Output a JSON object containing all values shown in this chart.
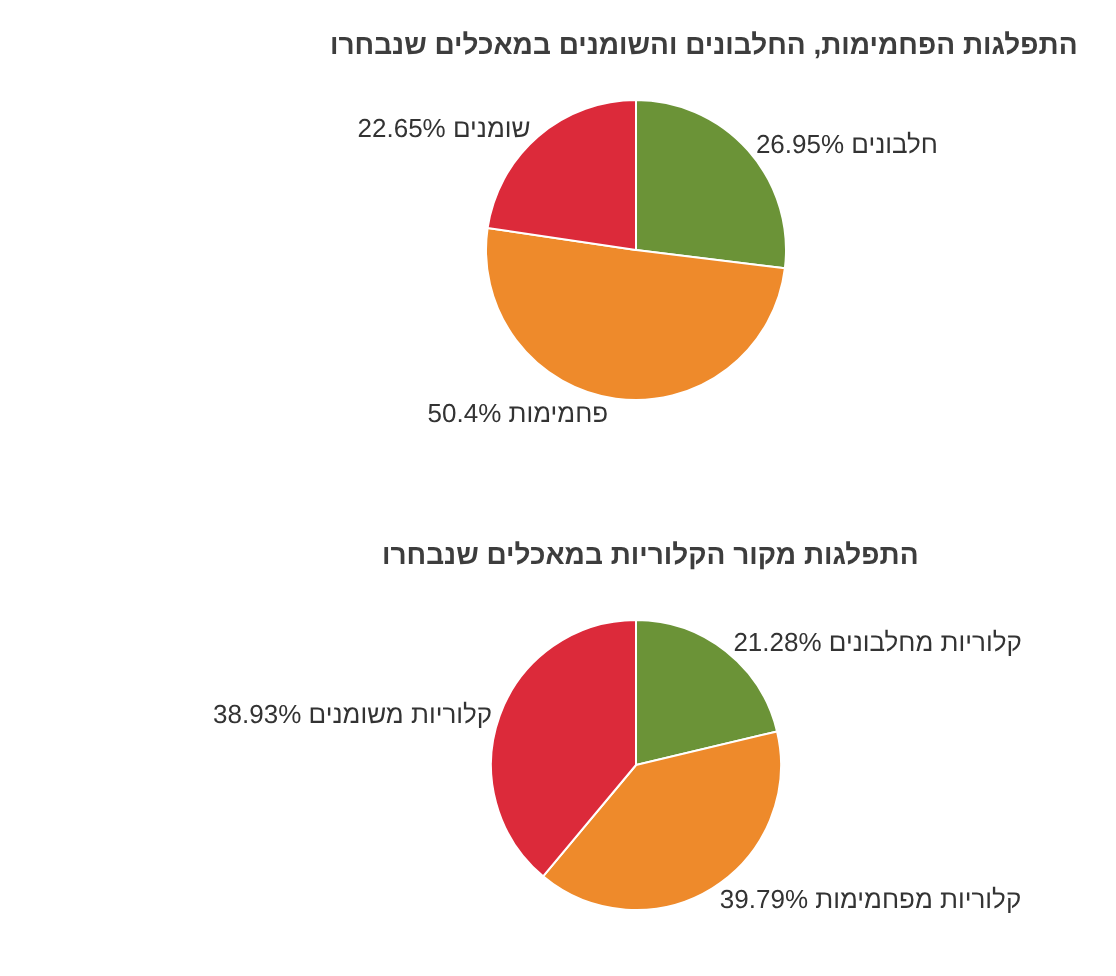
{
  "chart_data": [
    {
      "type": "pie",
      "title": "התפלגות הפחמימות, החלבונים והשומנים במאכלים שנבחרו",
      "categories": [
        "חלבונים",
        "פחמימות",
        "שומנים"
      ],
      "values": [
        26.95,
        50.4,
        22.65
      ],
      "value_labels": [
        "26.95%",
        "50.4%",
        "22.65%"
      ],
      "colors": [
        "#6b9337",
        "#ee8a2b",
        "#dc2a3a"
      ]
    },
    {
      "type": "pie",
      "title": "התפלגות מקור הקלוריות במאכלים שנבחרו",
      "categories": [
        "קלוריות מחלבונים",
        "קלוריות מפחמימות",
        "קלוריות משומנים"
      ],
      "values": [
        21.28,
        39.79,
        38.93
      ],
      "value_labels": [
        "21.28%",
        "39.79%",
        "38.93%"
      ],
      "colors": [
        "#6b9337",
        "#ee8a2b",
        "#dc2a3a"
      ]
    }
  ]
}
